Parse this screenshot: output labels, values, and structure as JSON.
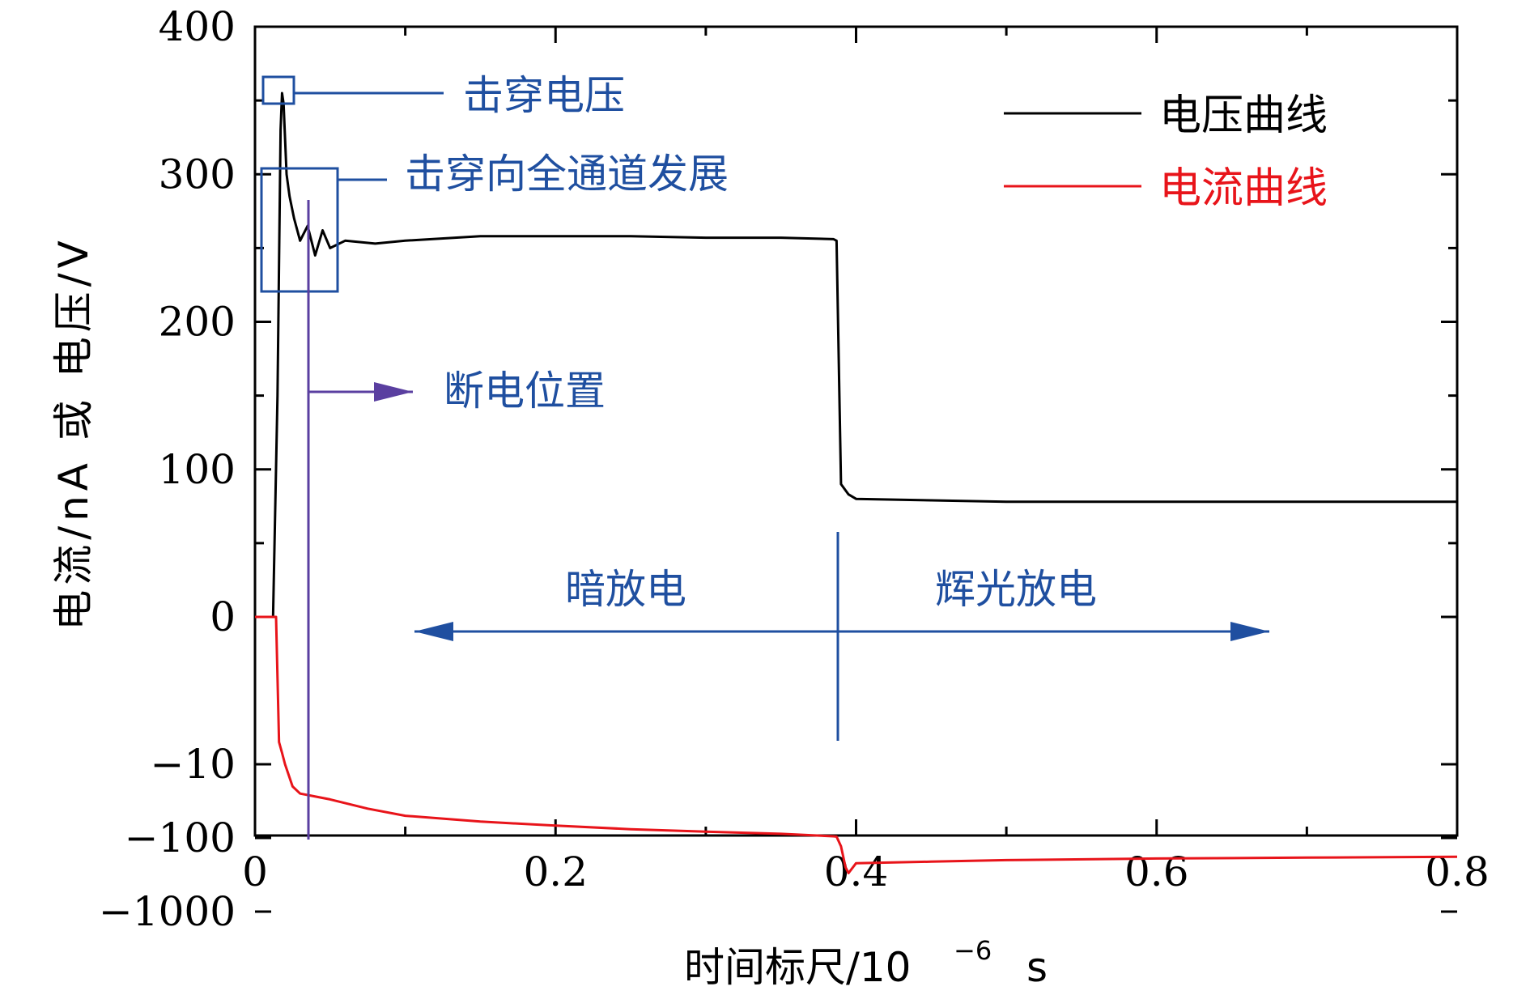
{
  "chart_data": {
    "type": "line",
    "title": "",
    "xlabel": "时间标尺/10",
    "xlabel_exponent": "−6",
    "xlabel_unit": "s",
    "ylabel": "电流/nA 或 电压/V",
    "xlim": [
      0,
      0.8
    ],
    "x_ticks": [
      "0",
      "0.2",
      "0.4",
      "0.6",
      "0.8"
    ],
    "y_ticks": [
      "400",
      "300",
      "200",
      "100",
      "0",
      "−10",
      "−100",
      "−1000"
    ],
    "y_scale": "piecewise: linear 0–400 above zero, logarithmic symmetric below zero (0, −10, −100, −1000)",
    "grid": false,
    "legend_position": "top-right",
    "series": [
      {
        "name": "电压曲线",
        "color": "#000000",
        "points": [
          [
            0.0,
            0
          ],
          [
            0.012,
            0
          ],
          [
            0.015,
            150
          ],
          [
            0.017,
            330
          ],
          [
            0.018,
            355
          ],
          [
            0.019,
            348
          ],
          [
            0.021,
            300
          ],
          [
            0.023,
            285
          ],
          [
            0.026,
            270
          ],
          [
            0.03,
            255
          ],
          [
            0.035,
            265
          ],
          [
            0.04,
            245
          ],
          [
            0.045,
            262
          ],
          [
            0.05,
            250
          ],
          [
            0.06,
            255
          ],
          [
            0.08,
            253
          ],
          [
            0.1,
            255
          ],
          [
            0.15,
            258
          ],
          [
            0.2,
            258
          ],
          [
            0.25,
            258
          ],
          [
            0.3,
            257
          ],
          [
            0.35,
            257
          ],
          [
            0.385,
            256
          ],
          [
            0.387,
            255
          ],
          [
            0.39,
            90
          ],
          [
            0.395,
            83
          ],
          [
            0.4,
            80
          ],
          [
            0.45,
            79
          ],
          [
            0.5,
            78
          ],
          [
            0.6,
            78
          ],
          [
            0.7,
            78
          ],
          [
            0.8,
            78
          ]
        ]
      },
      {
        "name": "电流曲线",
        "color": "#e8141a",
        "points": [
          [
            0.0,
            0
          ],
          [
            0.014,
            0
          ],
          [
            0.016,
            -5
          ],
          [
            0.018,
            -7
          ],
          [
            0.02,
            -10
          ],
          [
            0.025,
            -20
          ],
          [
            0.03,
            -25
          ],
          [
            0.05,
            -30
          ],
          [
            0.075,
            -40
          ],
          [
            0.1,
            -50
          ],
          [
            0.15,
            -60
          ],
          [
            0.2,
            -68
          ],
          [
            0.25,
            -76
          ],
          [
            0.3,
            -82
          ],
          [
            0.35,
            -88
          ],
          [
            0.385,
            -95
          ],
          [
            0.387,
            -96
          ],
          [
            0.39,
            -130
          ],
          [
            0.393,
            -250
          ],
          [
            0.395,
            -300
          ],
          [
            0.4,
            -220
          ],
          [
            0.45,
            -210
          ],
          [
            0.5,
            -200
          ],
          [
            0.6,
            -190
          ],
          [
            0.7,
            -185
          ],
          [
            0.8,
            -180
          ]
        ]
      }
    ],
    "annotations": [
      {
        "text": "击穿电压",
        "color": "#1f4fa0"
      },
      {
        "text": "击穿向全通道发展",
        "color": "#1f4fa0"
      },
      {
        "text": "断电位置",
        "color": "#5a3fa0"
      },
      {
        "text": "暗放电",
        "color": "#1f4fa0"
      },
      {
        "text": "辉光放电",
        "color": "#1f4fa0"
      }
    ]
  }
}
